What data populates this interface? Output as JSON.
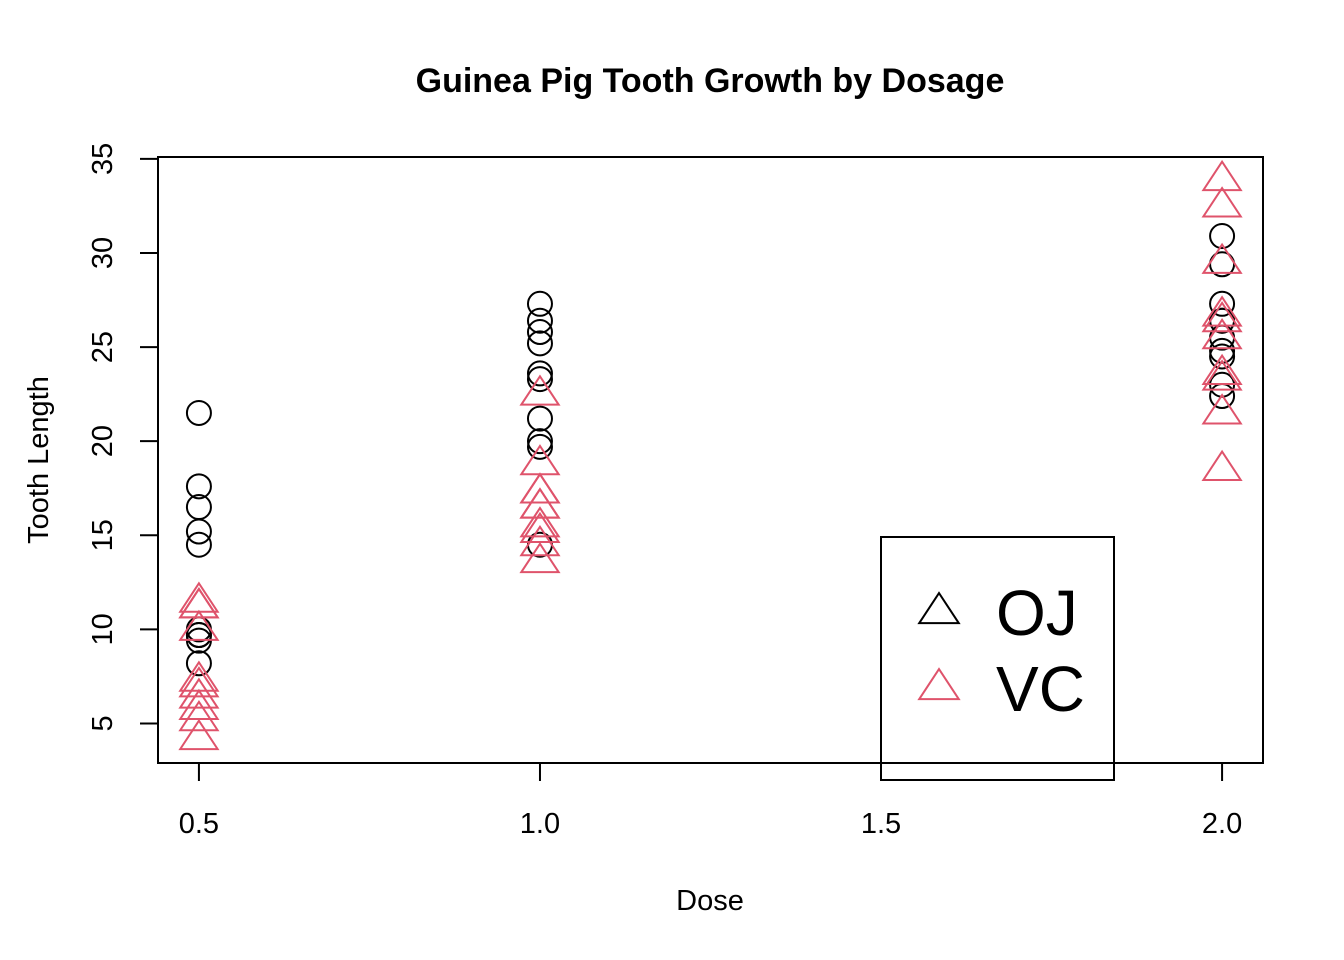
{
  "chart_data": {
    "type": "scatter",
    "title": "Guinea Pig Tooth Growth by Dosage",
    "xlabel": "Dose",
    "ylabel": "Tooth Length",
    "xlim": [
      0.44,
      2.06
    ],
    "ylim": [
      2.9,
      35.1
    ],
    "x_ticks": [
      "0.5",
      "1.0",
      "1.5",
      "2.0"
    ],
    "y_ticks": [
      "5",
      "10",
      "15",
      "20",
      "25",
      "30",
      "35"
    ],
    "grid": false,
    "legend_position": "bottom-right",
    "series": [
      {
        "name": "OJ",
        "color": "#000000",
        "plot_marker": "open-circle",
        "legend_marker": "open-triangle",
        "points": [
          [
            0.5,
            15.2
          ],
          [
            0.5,
            21.5
          ],
          [
            0.5,
            17.6
          ],
          [
            0.5,
            9.7
          ],
          [
            0.5,
            14.5
          ],
          [
            0.5,
            10.0
          ],
          [
            0.5,
            8.2
          ],
          [
            0.5,
            9.4
          ],
          [
            0.5,
            16.5
          ],
          [
            0.5,
            9.7
          ],
          [
            1.0,
            19.7
          ],
          [
            1.0,
            23.3
          ],
          [
            1.0,
            23.6
          ],
          [
            1.0,
            26.4
          ],
          [
            1.0,
            20.0
          ],
          [
            1.0,
            25.2
          ],
          [
            1.0,
            25.8
          ],
          [
            1.0,
            21.2
          ],
          [
            1.0,
            14.5
          ],
          [
            1.0,
            27.3
          ],
          [
            2.0,
            25.5
          ],
          [
            2.0,
            26.4
          ],
          [
            2.0,
            22.4
          ],
          [
            2.0,
            24.5
          ],
          [
            2.0,
            24.8
          ],
          [
            2.0,
            30.9
          ],
          [
            2.0,
            26.4
          ],
          [
            2.0,
            27.3
          ],
          [
            2.0,
            29.4
          ],
          [
            2.0,
            23.0
          ]
        ]
      },
      {
        "name": "VC",
        "color": "#DF536B",
        "plot_marker": "open-triangle",
        "legend_marker": "open-triangle",
        "points": [
          [
            0.5,
            4.2
          ],
          [
            0.5,
            11.5
          ],
          [
            0.5,
            7.3
          ],
          [
            0.5,
            5.8
          ],
          [
            0.5,
            6.4
          ],
          [
            0.5,
            10.0
          ],
          [
            0.5,
            11.2
          ],
          [
            0.5,
            11.2
          ],
          [
            0.5,
            5.2
          ],
          [
            0.5,
            7.0
          ],
          [
            1.0,
            16.5
          ],
          [
            1.0,
            16.5
          ],
          [
            1.0,
            15.2
          ],
          [
            1.0,
            17.3
          ],
          [
            1.0,
            22.5
          ],
          [
            1.0,
            17.3
          ],
          [
            1.0,
            13.6
          ],
          [
            1.0,
            14.5
          ],
          [
            1.0,
            18.8
          ],
          [
            1.0,
            15.5
          ],
          [
            2.0,
            23.6
          ],
          [
            2.0,
            18.5
          ],
          [
            2.0,
            33.9
          ],
          [
            2.0,
            25.5
          ],
          [
            2.0,
            26.4
          ],
          [
            2.0,
            32.5
          ],
          [
            2.0,
            26.7
          ],
          [
            2.0,
            21.5
          ],
          [
            2.0,
            23.3
          ],
          [
            2.0,
            29.5
          ]
        ]
      }
    ]
  }
}
